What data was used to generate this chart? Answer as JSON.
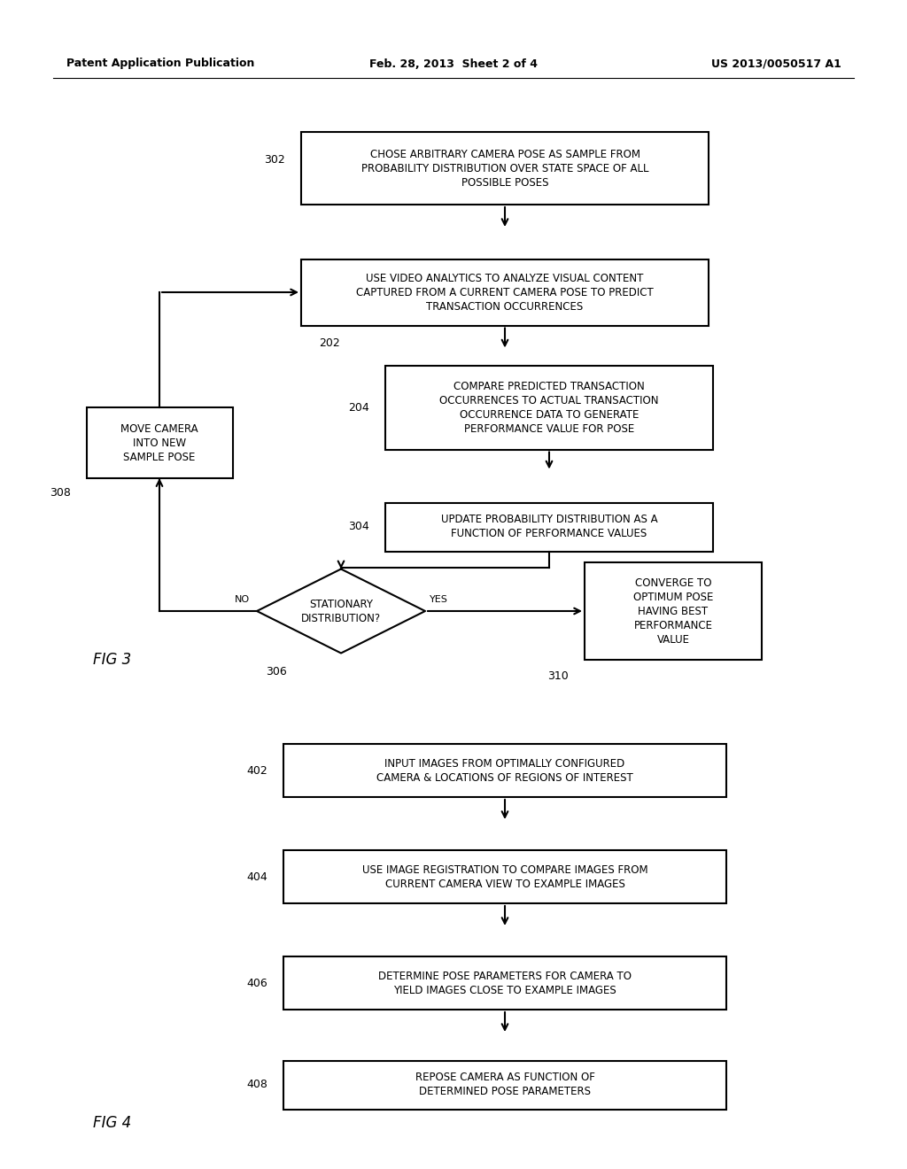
{
  "header_left": "Patent Application Publication",
  "header_mid": "Feb. 28, 2013  Sheet 2 of 4",
  "header_right": "US 2013/0050517 A1",
  "bg_color": "#ffffff",
  "line_color": "#000000",
  "text_color": "#000000",
  "box_fill": "#ffffff",
  "fig3_label": "FIG 3",
  "fig4_label": "FIG 4"
}
